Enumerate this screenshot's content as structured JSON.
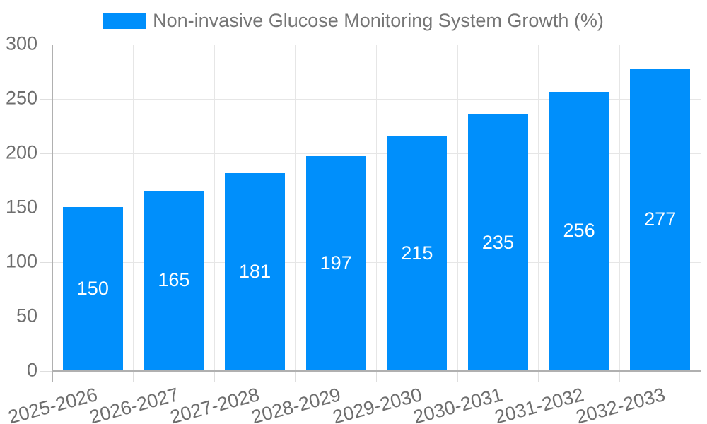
{
  "chart_data": {
    "type": "bar",
    "title": "Non-invasive Glucose Monitoring System Growth (%)",
    "categories": [
      "2025-2026",
      "2026-2027",
      "2027-2028",
      "2028-2029",
      "2029-2030",
      "2030-2031",
      "2031-2032",
      "2032-2033"
    ],
    "values": [
      150,
      165,
      181,
      197,
      215,
      235,
      256,
      277
    ],
    "data_labels": [
      "150",
      "165",
      "181",
      "197",
      "215",
      "235",
      "256",
      "277"
    ],
    "xlabel": "",
    "ylabel": "",
    "ylim": [
      0,
      300
    ],
    "yticks": [
      0,
      50,
      100,
      150,
      200,
      250,
      300
    ],
    "grid": "on",
    "legend_position": "top",
    "x_label_rotation_deg": -15,
    "colors": {
      "bar": "#008FFB",
      "value_label": "#ffffff",
      "axis_label": "#6e6e6e",
      "legend_label": "#757575",
      "gridline": "#e6e6e6",
      "tick": "#dedede",
      "axis_line": "#b0b0b0"
    }
  }
}
